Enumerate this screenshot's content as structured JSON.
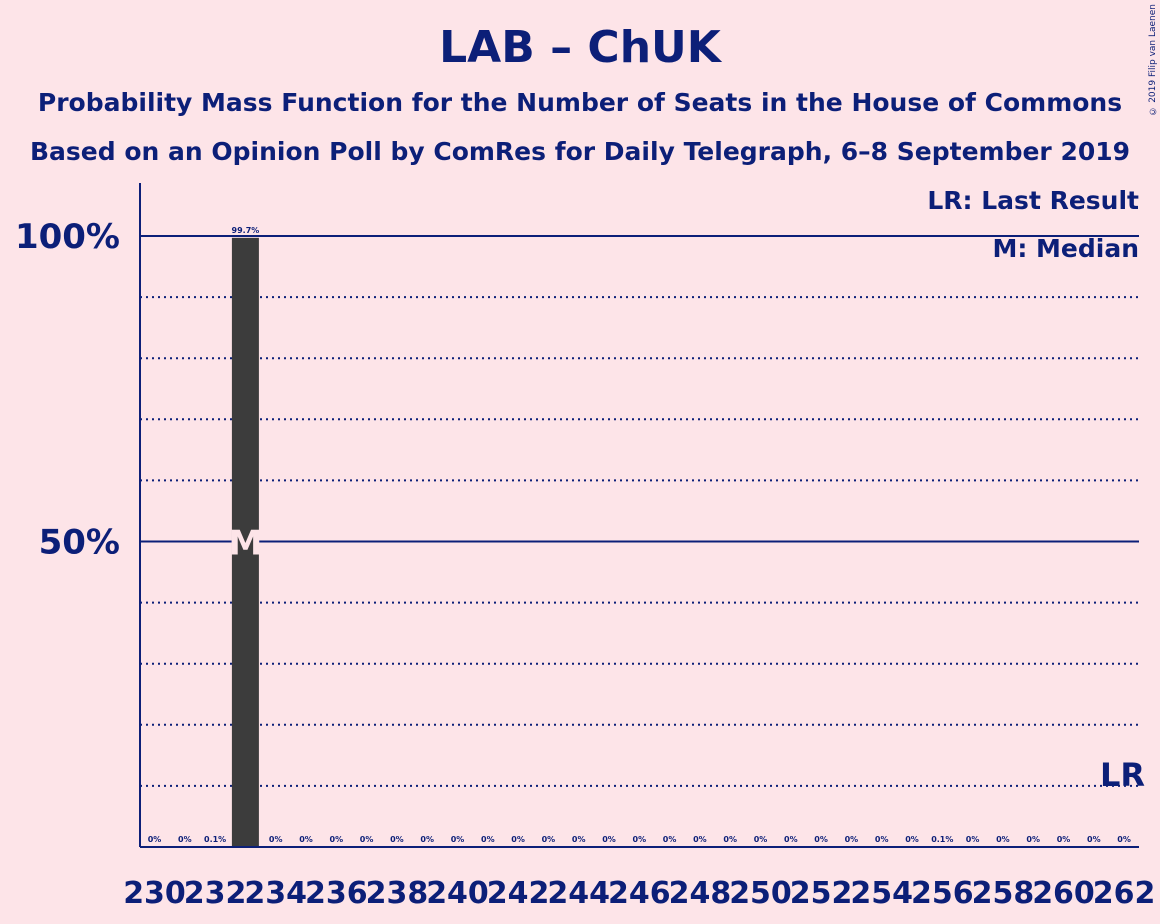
{
  "chart_data": {
    "type": "bar",
    "title": "LAB – ChUK",
    "subtitle1": "Probability Mass Function for the Number of Seats in the House of Commons",
    "subtitle2": "Based on an Opinion Poll by ComRes for Daily Telegraph, 6–8 September 2019",
    "copyright": "© 2019 Filip van Laenen",
    "legend": {
      "last_result": "LR: Last Result",
      "median": "M: Median"
    },
    "median_marker": "M",
    "last_result_marker": "LR",
    "last_result_seat": 262,
    "median_seat": 233,
    "ylim": [
      0,
      100
    ],
    "y_ticks": [
      {
        "value": 50,
        "label": "50%"
      },
      {
        "value": 100,
        "label": "100%"
      }
    ],
    "x_tick_labels": [
      "230",
      "232",
      "234",
      "236",
      "238",
      "240",
      "242",
      "244",
      "246",
      "248",
      "250",
      "252",
      "254",
      "256",
      "258",
      "260",
      "262"
    ],
    "categories": [
      230,
      231,
      232,
      233,
      234,
      235,
      236,
      237,
      238,
      239,
      240,
      241,
      242,
      243,
      244,
      245,
      246,
      247,
      248,
      249,
      250,
      251,
      252,
      253,
      254,
      255,
      256,
      257,
      258,
      259,
      260,
      261,
      262
    ],
    "values": [
      0,
      0,
      0.1,
      99.7,
      0,
      0,
      0,
      0,
      0,
      0,
      0,
      0,
      0,
      0,
      0,
      0,
      0,
      0,
      0,
      0,
      0,
      0,
      0,
      0,
      0,
      0,
      0.1,
      0,
      0,
      0,
      0,
      0,
      0
    ],
    "value_labels": [
      "0%",
      "0%",
      "0.1%",
      "99.7%",
      "0%",
      "0%",
      "0%",
      "0%",
      "0%",
      "0%",
      "0%",
      "0%",
      "0%",
      "0%",
      "0%",
      "0%",
      "0%",
      "0%",
      "0%",
      "0%",
      "0%",
      "0%",
      "0%",
      "0%",
      "0%",
      "0%",
      "0.1%",
      "0%",
      "0%",
      "0%",
      "0%",
      "0%",
      "0%"
    ],
    "colors": {
      "bar": "#3c3c3c",
      "axis": "#0c1f78",
      "background": "#fde4e8",
      "median_text": "#fde4e8"
    }
  }
}
